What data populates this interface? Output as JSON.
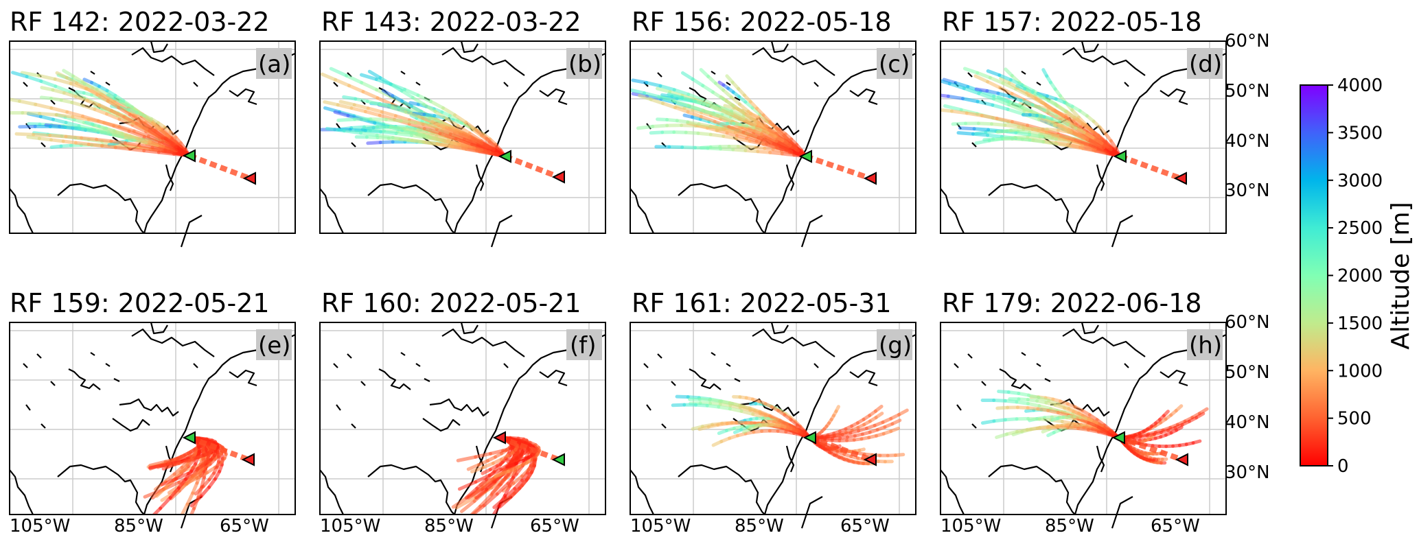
{
  "panels": [
    {
      "title": "RF 142: 2022-03-22",
      "letter": "(a)"
    },
    {
      "title": "RF 143: 2022-03-22",
      "letter": "(b)"
    },
    {
      "title": "RF 156: 2022-05-18",
      "letter": "(c)"
    },
    {
      "title": "RF 157: 2022-05-18",
      "letter": "(d)"
    },
    {
      "title": "RF 159: 2022-05-21",
      "letter": "(e)"
    },
    {
      "title": "RF 160: 2022-05-21",
      "letter": "(f)"
    },
    {
      "title": "RF 161: 2022-05-31",
      "letter": "(g)"
    },
    {
      "title": "RF 179: 2022-06-18",
      "letter": "(h)"
    }
  ],
  "latitude_labels": [
    "60°N",
    "50°N",
    "40°N",
    "30°N"
  ],
  "longitude_labels": [
    "105°W",
    "85°W",
    "65°W"
  ],
  "colorbar": {
    "title": "Altitude [m]",
    "ticks": [
      "4000",
      "3500",
      "3000",
      "2500",
      "2000",
      "1500",
      "1000",
      "500",
      "0"
    ],
    "colormap": [
      "#8000ff",
      "#4062fa",
      "#00b5eb",
      "#40ecd4",
      "#80ffb4",
      "#c0eb8d",
      "#ffb462",
      "#ff6230",
      "#ff0000"
    ]
  },
  "markers": {
    "start_color": "#33cc44",
    "end_color": "#ee2222"
  }
}
